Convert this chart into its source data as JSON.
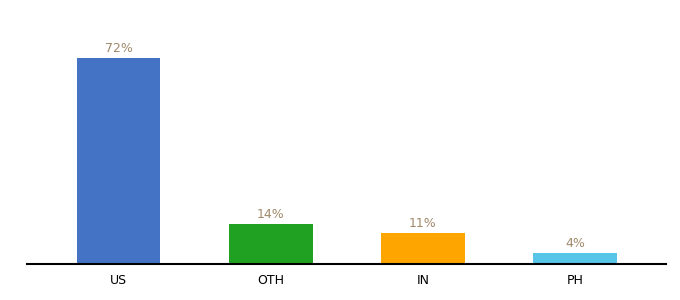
{
  "categories": [
    "US",
    "OTH",
    "IN",
    "PH"
  ],
  "values": [
    72,
    14,
    11,
    4
  ],
  "bar_colors": [
    "#4472C4",
    "#21A121",
    "#FFA500",
    "#56C5E8"
  ],
  "label_color": "#A0896B",
  "ylim": [
    0,
    85
  ],
  "bar_width": 0.55,
  "label_fontsize": 9,
  "tick_fontsize": 9,
  "background_color": "#ffffff"
}
